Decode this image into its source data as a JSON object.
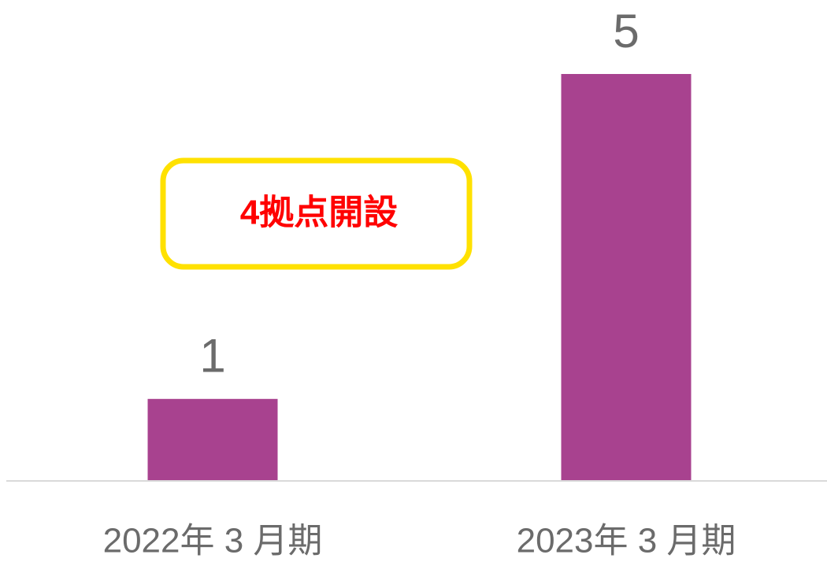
{
  "chart_data": {
    "type": "bar",
    "categories": [
      "2022年 3 月期",
      "2023年 3 月期"
    ],
    "values": [
      1,
      5
    ],
    "color": "#a8428f",
    "ylim": [
      0,
      5
    ],
    "annotation": "4拠点開設"
  }
}
